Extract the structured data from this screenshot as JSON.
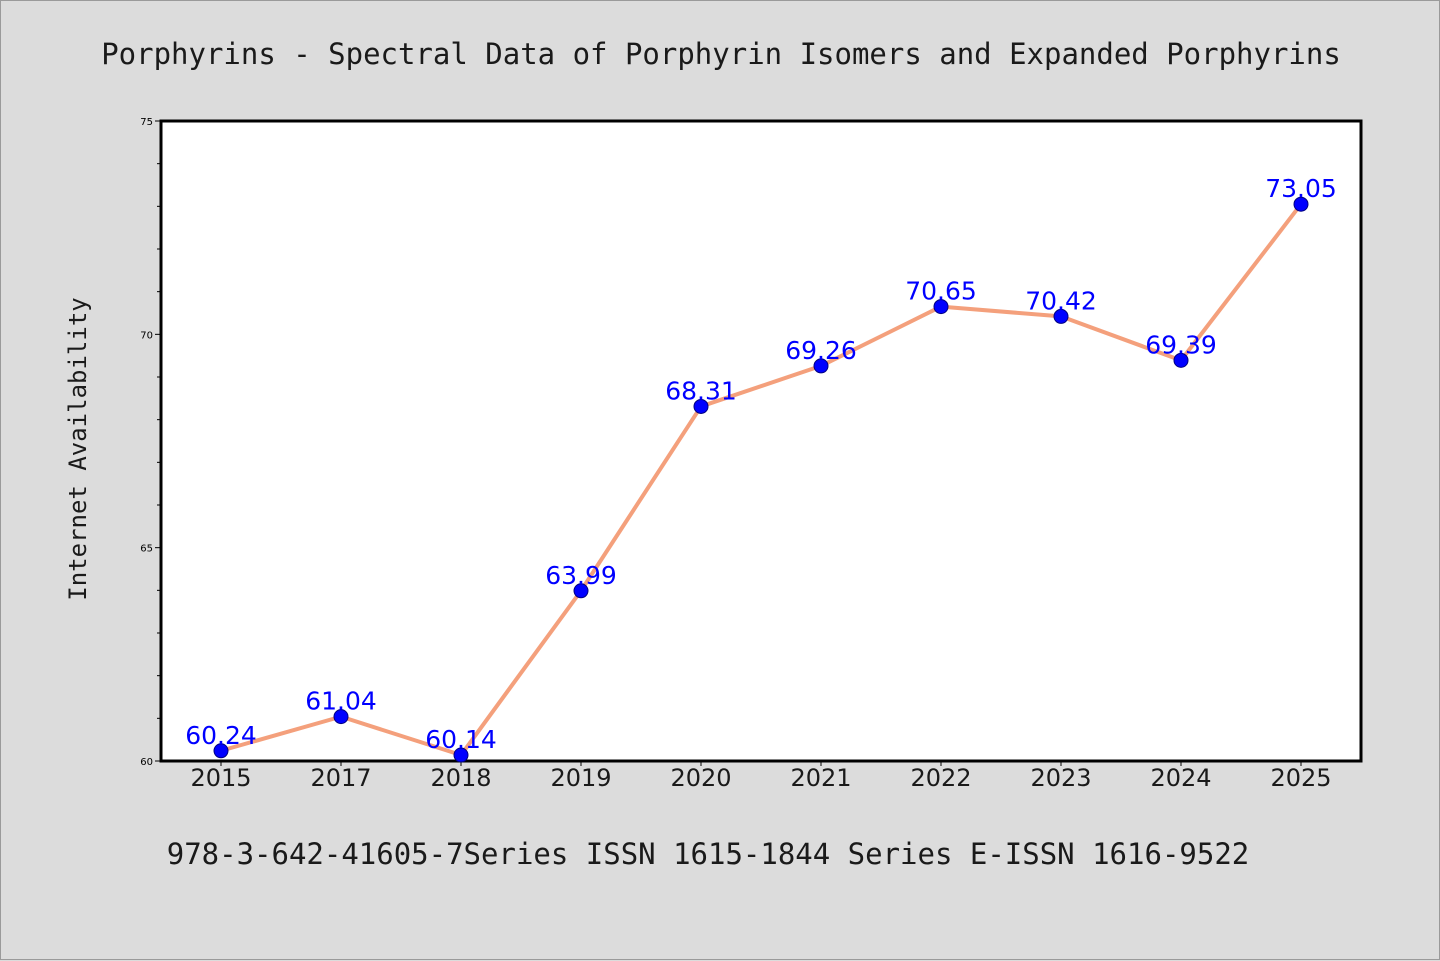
{
  "chart_data": {
    "type": "line",
    "title": "Porphyrins - Spectral Data of Porphyrin Isomers and Expanded Porphyrins",
    "xlabel": "",
    "ylabel": "Internet Availability",
    "footer": "978-3-642-41605-7Series ISSN 1615-1844 Series E-ISSN 1616-9522",
    "categories": [
      "2015",
      "2017",
      "2018",
      "2019",
      "2020",
      "2021",
      "2022",
      "2023",
      "2024",
      "2025"
    ],
    "series": [
      {
        "values": [
          60.24,
          61.04,
          60.14,
          63.99,
          68.31,
          69.26,
          70.65,
          70.42,
          69.39,
          73.05
        ],
        "data_labels": [
          "60.24",
          "61.04",
          "60.14",
          "63.99",
          "68.31",
          "69.26",
          "70.65",
          "70.42",
          "69.39",
          "73.05"
        ]
      }
    ],
    "ylim": [
      60,
      75
    ],
    "yticks": [
      60,
      65,
      70,
      75
    ],
    "ytick_labels": [
      "60",
      "65",
      "70",
      "75"
    ],
    "y_minor_step": 1,
    "grid": false,
    "data_labels_shown": true,
    "colors": {
      "background": "#dcdcdc",
      "plot_background": "#ffffff",
      "line": "#f4a07c",
      "marker_fill": "#0000ff",
      "marker_edge": "#000080",
      "data_label": "#0000ff",
      "axis": "#000000"
    }
  }
}
